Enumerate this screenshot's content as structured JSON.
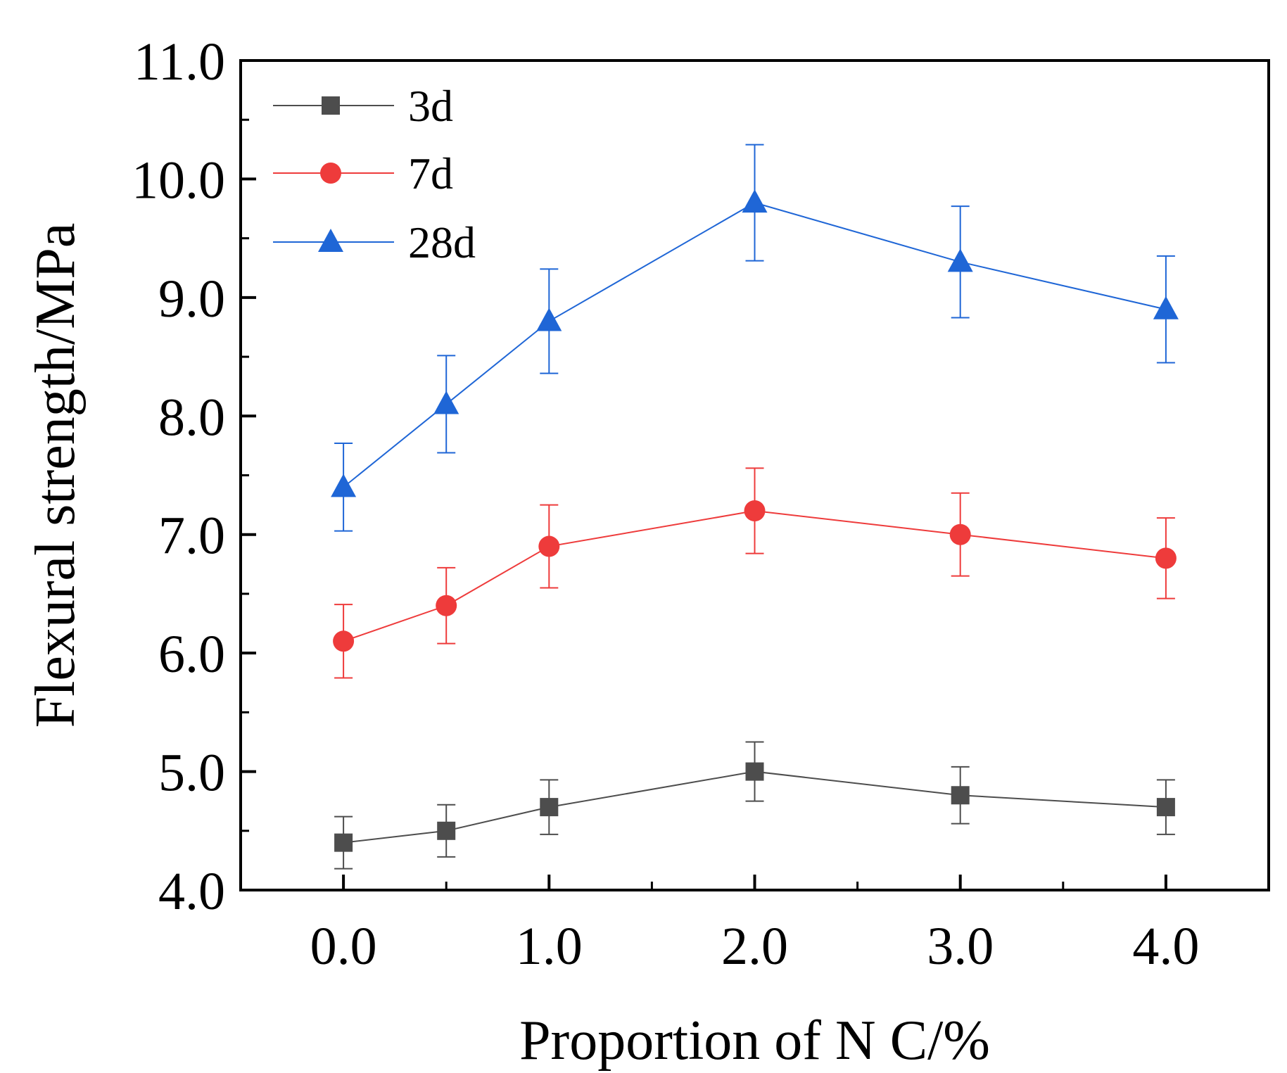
{
  "chart_data": {
    "type": "line",
    "xlabel": "Proportion of N C/%",
    "ylabel": "Flexural strength/MPa",
    "xlim": [
      -0.5,
      4.5
    ],
    "ylim": [
      4.0,
      11.0
    ],
    "x_ticks": [
      0,
      1,
      2,
      3,
      4
    ],
    "x_tick_labels": [
      "0.0",
      "1.0",
      "2.0",
      "3.0",
      "4.0"
    ],
    "x_minor_ticks": [
      -0.5,
      0.5,
      1.5,
      2.5,
      3.5,
      4.5
    ],
    "y_ticks": [
      4,
      5,
      6,
      7,
      8,
      9,
      10,
      11
    ],
    "y_tick_labels": [
      "4.0",
      "5.0",
      "6.0",
      "7.0",
      "8.0",
      "9.0",
      "10.0",
      "11.0"
    ],
    "y_minor_ticks": [
      4.5,
      5.5,
      6.5,
      7.5,
      8.5,
      9.5,
      10.5
    ],
    "grid": false,
    "legend_position": "top-left",
    "x": [
      0,
      0.5,
      1,
      2,
      3,
      4
    ],
    "series": [
      {
        "name": "3d",
        "marker": "square",
        "color": "#4d4d4d",
        "values": [
          4.4,
          4.5,
          4.7,
          5.0,
          4.8,
          4.7
        ],
        "errors": [
          0.22,
          0.22,
          0.23,
          0.25,
          0.24,
          0.23
        ]
      },
      {
        "name": "7d",
        "marker": "circle",
        "color": "#ee3b3b",
        "values": [
          6.1,
          6.4,
          6.9,
          7.2,
          7.0,
          6.8
        ],
        "errors": [
          0.31,
          0.32,
          0.35,
          0.36,
          0.35,
          0.34
        ]
      },
      {
        "name": "28d",
        "marker": "triangle",
        "color": "#1f66d6",
        "values": [
          7.4,
          8.1,
          8.8,
          9.8,
          9.3,
          8.9
        ],
        "errors": [
          0.37,
          0.41,
          0.44,
          0.49,
          0.47,
          0.45
        ]
      }
    ]
  }
}
